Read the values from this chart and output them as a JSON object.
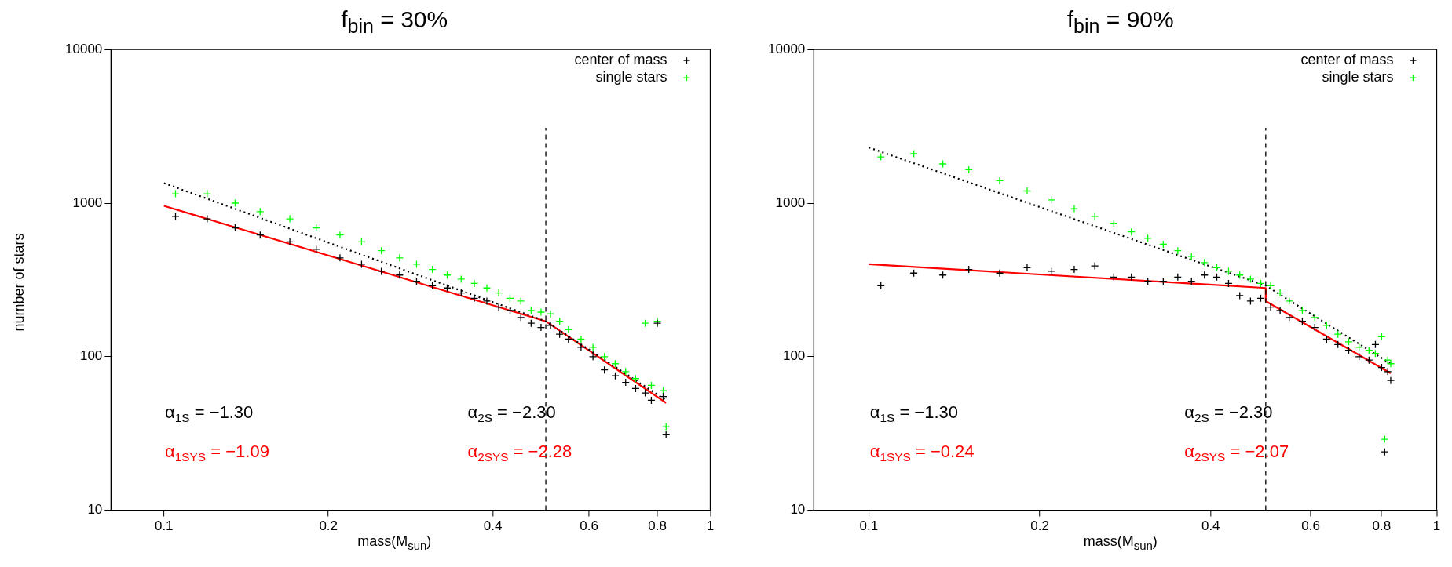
{
  "chart_data": [
    {
      "type": "scatter",
      "title": "f$_{bin}$ = 30%",
      "xlabel": "mass(M$_{sun}$)",
      "ylabel": "number of stars",
      "log": "xy",
      "grid": false,
      "legend": "top right",
      "xlim": [
        0.08,
        1
      ],
      "xticks": [
        0.1,
        0.2,
        0.4,
        0.6,
        0.8,
        1
      ],
      "ylim": [
        10,
        10000
      ],
      "yticks": [
        10,
        100,
        1000,
        10000
      ],
      "annotations": [
        "α$_{1S}$ = −1.30",
        "α$_{2S}$ = −2.30",
        "α$_{1SYS}$ = −1.09",
        "α$_{2SYS}$ = −2.28"
      ],
      "ref_lines": [
        {
          "axis": "x",
          "value": 0.5,
          "label": null,
          "color": "#000000",
          "line_style": "dashed"
        }
      ],
      "series": [
        {
          "name": "center of mass",
          "color": "#000000",
          "marker": "cross",
          "x": [
            0.105,
            0.12,
            0.135,
            0.15,
            0.17,
            0.19,
            0.21,
            0.23,
            0.25,
            0.27,
            0.29,
            0.31,
            0.33,
            0.35,
            0.37,
            0.39,
            0.41,
            0.43,
            0.45,
            0.47,
            0.49,
            0.51,
            0.53,
            0.55,
            0.58,
            0.61,
            0.64,
            0.67,
            0.7,
            0.73,
            0.76,
            0.78,
            0.8,
            0.82,
            0.83
          ],
          "values": [
            820,
            790,
            690,
            620,
            560,
            500,
            440,
            400,
            360,
            340,
            310,
            290,
            280,
            260,
            240,
            230,
            210,
            200,
            180,
            165,
            155,
            160,
            140,
            130,
            115,
            100,
            82,
            75,
            68,
            62,
            58,
            52,
            165,
            55,
            31
          ]
        },
        {
          "name": "single stars",
          "color": "#00ff00",
          "marker": "cross",
          "x": [
            0.105,
            0.12,
            0.135,
            0.15,
            0.17,
            0.19,
            0.21,
            0.23,
            0.25,
            0.27,
            0.29,
            0.31,
            0.33,
            0.35,
            0.37,
            0.39,
            0.41,
            0.43,
            0.45,
            0.47,
            0.49,
            0.51,
            0.53,
            0.55,
            0.58,
            0.61,
            0.64,
            0.67,
            0.7,
            0.73,
            0.76,
            0.78,
            0.8,
            0.82,
            0.83
          ],
          "values": [
            1150,
            1150,
            1000,
            880,
            790,
            690,
            620,
            560,
            490,
            440,
            400,
            370,
            340,
            320,
            300,
            280,
            260,
            240,
            230,
            200,
            195,
            190,
            170,
            150,
            130,
            115,
            100,
            90,
            80,
            72,
            165,
            65,
            170,
            60,
            35
          ]
        },
        {
          "type": "line",
          "color": "#000000",
          "marker": "none",
          "line_style": "dotted",
          "x": [
            0.1,
            0.5,
            0.83
          ],
          "values": [
            1350,
            170,
            52
          ]
        },
        {
          "type": "line",
          "color": "#ff0000",
          "marker": "none",
          "line_style": "solid",
          "x": [
            0.1,
            0.5,
            0.83
          ],
          "values": [
            960,
            170,
            50
          ]
        }
      ]
    },
    {
      "type": "scatter",
      "title": "f$_{bin}$ = 90%",
      "xlabel": "mass(M$_{sun}$)",
      "log": "xy",
      "grid": false,
      "legend": "top right",
      "xlim": [
        0.08,
        1
      ],
      "xticks": [
        0.1,
        0.2,
        0.4,
        0.6,
        0.8,
        1
      ],
      "ylim": [
        10,
        10000
      ],
      "yticks": [
        10,
        100,
        1000,
        10000
      ],
      "annotations": [
        "α$_{1S}$ = −1.30",
        "α$_{2S}$ = −2.30",
        "α$_{1SYS}$ = −0.24",
        "α$_{2SYS}$ = −2.07"
      ],
      "ref_lines": [
        {
          "axis": "x",
          "value": 0.5,
          "label": null,
          "color": "#000000",
          "line_style": "dashed"
        }
      ],
      "series": [
        {
          "name": "center of mass",
          "color": "#000000",
          "marker": "cross",
          "x": [
            0.105,
            0.12,
            0.135,
            0.15,
            0.17,
            0.19,
            0.21,
            0.23,
            0.25,
            0.27,
            0.29,
            0.31,
            0.33,
            0.35,
            0.37,
            0.39,
            0.41,
            0.43,
            0.45,
            0.47,
            0.49,
            0.51,
            0.53,
            0.55,
            0.58,
            0.61,
            0.64,
            0.67,
            0.7,
            0.73,
            0.76,
            0.78,
            0.8,
            0.81,
            0.82,
            0.83
          ],
          "values": [
            290,
            350,
            340,
            370,
            350,
            380,
            360,
            370,
            390,
            330,
            330,
            310,
            310,
            330,
            310,
            340,
            330,
            300,
            250,
            230,
            240,
            210,
            200,
            180,
            170,
            155,
            130,
            120,
            110,
            100,
            95,
            120,
            85,
            24,
            80,
            70
          ]
        },
        {
          "name": "single stars",
          "color": "#00ff00",
          "marker": "cross",
          "x": [
            0.105,
            0.12,
            0.135,
            0.15,
            0.17,
            0.19,
            0.21,
            0.23,
            0.25,
            0.27,
            0.29,
            0.31,
            0.33,
            0.35,
            0.37,
            0.39,
            0.41,
            0.43,
            0.45,
            0.47,
            0.49,
            0.51,
            0.53,
            0.55,
            0.58,
            0.61,
            0.64,
            0.67,
            0.7,
            0.73,
            0.76,
            0.78,
            0.8,
            0.81,
            0.82,
            0.83
          ],
          "values": [
            2000,
            2100,
            1800,
            1650,
            1400,
            1200,
            1050,
            920,
            820,
            740,
            650,
            590,
            540,
            490,
            450,
            410,
            380,
            360,
            340,
            320,
            300,
            290,
            260,
            230,
            200,
            180,
            160,
            140,
            125,
            115,
            110,
            105,
            135,
            29,
            95,
            90
          ]
        },
        {
          "type": "line",
          "color": "#000000",
          "marker": "none",
          "line_style": "dotted",
          "x": [
            0.1,
            0.5,
            0.83
          ],
          "values": [
            2300,
            290,
            90
          ]
        },
        {
          "type": "line",
          "color": "#ff0000",
          "marker": "none",
          "line_style": "solid",
          "x": [
            0.1,
            0.5,
            0.5,
            0.83
          ],
          "values": [
            400,
            280,
            230,
            78
          ]
        }
      ]
    }
  ]
}
